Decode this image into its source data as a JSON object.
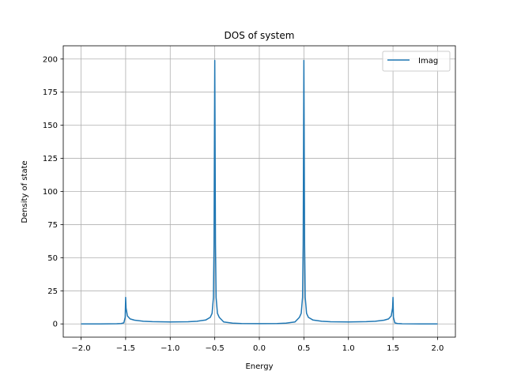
{
  "chart_data": {
    "type": "line",
    "title": "DOS of system",
    "xlabel": "Energy",
    "ylabel": "Density of state",
    "xlim": [
      -2.2,
      2.2
    ],
    "ylim": [
      -10,
      210
    ],
    "xticks": [
      -2.0,
      -1.5,
      -1.0,
      -0.5,
      0.0,
      0.5,
      1.0,
      1.5,
      2.0
    ],
    "xtick_labels": [
      "−2.0",
      "−1.5",
      "−1.0",
      "−0.5",
      "0.0",
      "0.5",
      "1.0",
      "1.5",
      "2.0"
    ],
    "yticks": [
      0,
      25,
      50,
      75,
      100,
      125,
      150,
      175,
      200
    ],
    "ytick_labels": [
      "0",
      "25",
      "50",
      "75",
      "100",
      "125",
      "150",
      "175",
      "200"
    ],
    "grid": true,
    "legend_position": "top-right",
    "series": [
      {
        "name": "Imag",
        "color": "#1f77b4",
        "x": [
          -2.0,
          -1.8,
          -1.6,
          -1.55,
          -1.52,
          -1.505,
          -1.5,
          -1.495,
          -1.48,
          -1.45,
          -1.4,
          -1.3,
          -1.2,
          -1.0,
          -0.8,
          -0.7,
          -0.6,
          -0.55,
          -0.53,
          -0.515,
          -0.508,
          -0.503,
          -0.5,
          -0.497,
          -0.492,
          -0.485,
          -0.47,
          -0.45,
          -0.4,
          -0.3,
          -0.2,
          0.0,
          0.2,
          0.3,
          0.4,
          0.45,
          0.47,
          0.485,
          0.492,
          0.497,
          0.5,
          0.503,
          0.508,
          0.515,
          0.53,
          0.55,
          0.6,
          0.7,
          0.8,
          1.0,
          1.2,
          1.3,
          1.4,
          1.45,
          1.48,
          1.495,
          1.5,
          1.505,
          1.52,
          1.55,
          1.6,
          1.8,
          2.0
        ],
        "y": [
          0,
          0,
          0.1,
          0.3,
          0.8,
          5,
          20,
          12,
          6,
          3.8,
          2.8,
          2.0,
          1.7,
          1.5,
          1.6,
          2.0,
          3.0,
          5.0,
          8.0,
          20,
          60,
          150,
          199,
          150,
          60,
          20,
          8,
          5,
          1.5,
          0.6,
          0.3,
          0.2,
          0.3,
          0.6,
          1.5,
          5,
          8,
          20,
          60,
          150,
          199,
          150,
          60,
          20,
          8,
          5,
          3.0,
          2.0,
          1.6,
          1.5,
          1.7,
          2.0,
          2.8,
          3.8,
          6,
          12,
          20,
          5,
          0.8,
          0.3,
          0.1,
          0,
          0
        ]
      }
    ]
  }
}
